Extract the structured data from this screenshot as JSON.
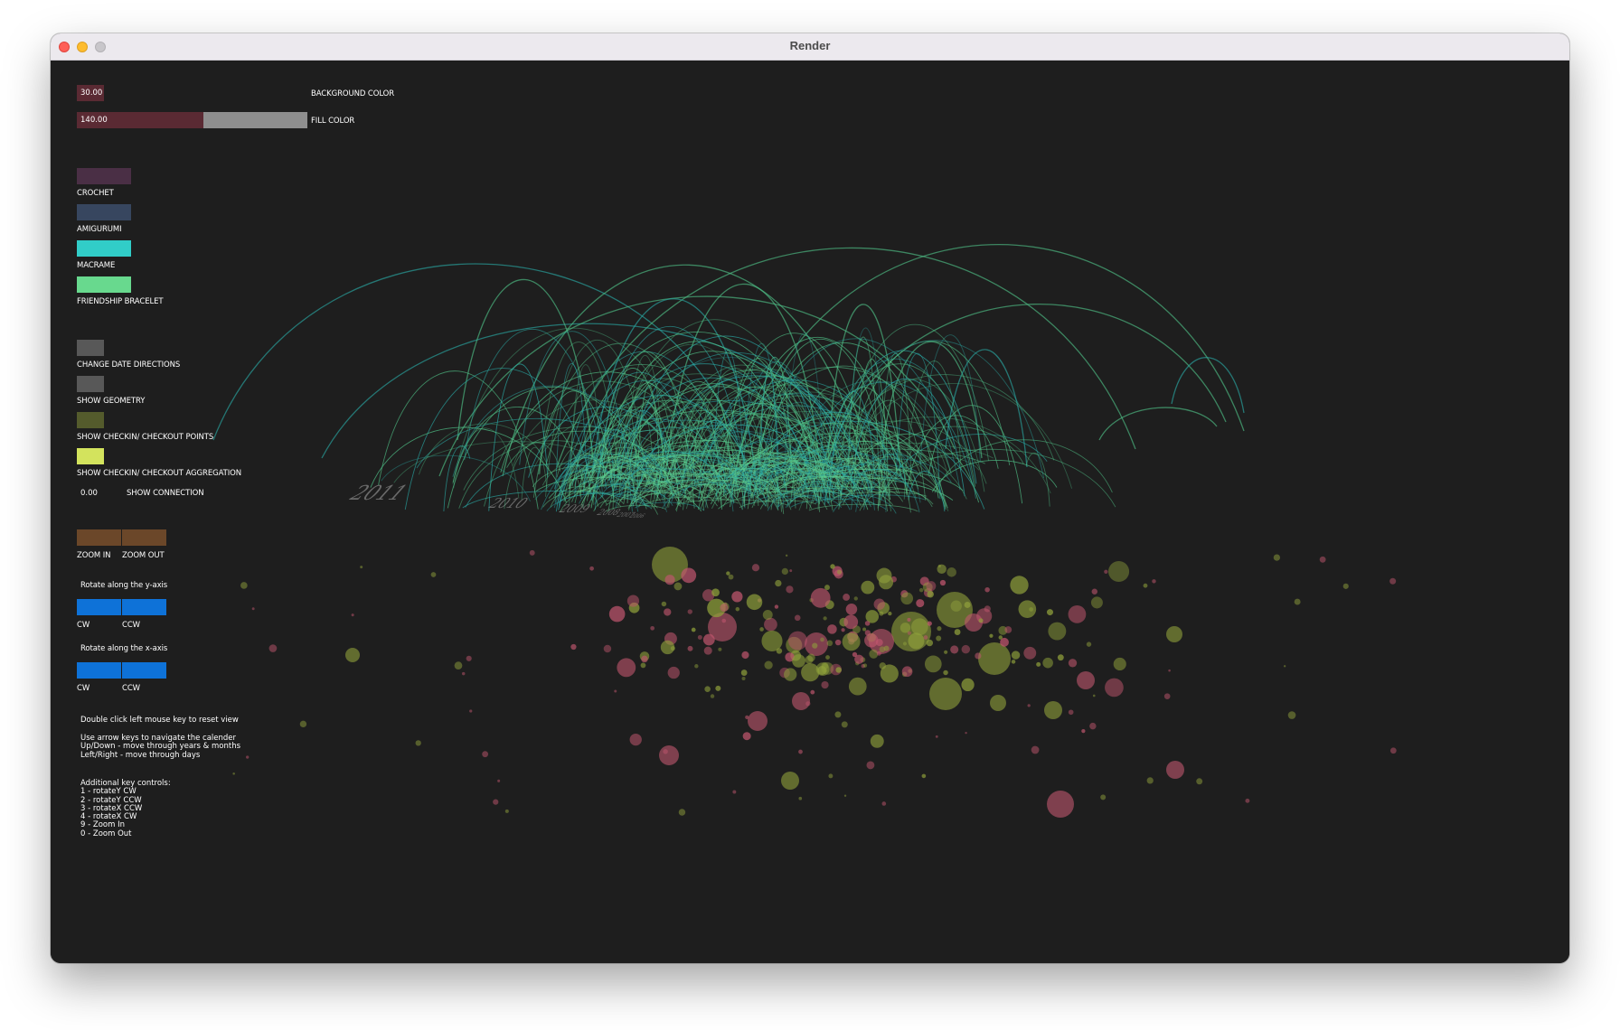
{
  "window": {
    "title": "Render"
  },
  "controls": {
    "background_slider": {
      "value": "30.00",
      "label": "BACKGROUND COLOR",
      "fill": 0.12
    },
    "fill_slider": {
      "value": "140.00",
      "label": "FILL COLOR",
      "fill": 0.55
    },
    "categories": [
      {
        "label": "CROCHET",
        "color": "#4a2f45"
      },
      {
        "label": "AMIGURUMI",
        "color": "#37465f"
      },
      {
        "label": "MACRAME",
        "color": "#31cdc8"
      },
      {
        "label": "FRIENDSHIP BRACELET",
        "color": "#68d98e"
      }
    ],
    "toggles": [
      {
        "label": "CHANGE DATE DIRECTIONS",
        "color": "#585858"
      },
      {
        "label": "SHOW GEOMETRY",
        "color": "#585858"
      },
      {
        "label": "SHOW CHECKIN/ CHECKOUT POINTS",
        "color": "#545b2c"
      },
      {
        "label": "SHOW CHECKIN/ CHECKOUT AGGREGATION",
        "color": "#d3e35d"
      }
    ],
    "connection": {
      "value": "0.00",
      "label": "SHOW CONNECTION"
    },
    "zoom": {
      "in_label": "ZOOM IN",
      "out_label": "ZOOM OUT",
      "color": "#6b4729"
    },
    "rotate_y": {
      "title": "Rotate along the y-axis",
      "cw": "CW",
      "ccw": "CCW",
      "color": "#0e72d8"
    },
    "rotate_x": {
      "title": "Rotate along the x-axis",
      "cw": "CW",
      "ccw": "CCW",
      "color": "#0e72d8"
    }
  },
  "help": {
    "reset": "Double click left mouse key to reset view",
    "nav": "Use arrow keys to navigate the calender\nUp/Down - move through years & months\nLeft/Right - move through days",
    "keys": "Additional key controls:\n1 - rotateY CW\n2 - rotateY CCW\n3 - rotateX CCW\n4 - rotateX CW\n9 - Zoom In\n0 - Zoom Out"
  },
  "year_labels": [
    "2011",
    "2010",
    "2009",
    "2008",
    "2007",
    "2006"
  ],
  "colors": {
    "arc_green": "#4fbf86",
    "arc_teal": "#2aa7a3",
    "bubble_olive": "#8fa03b",
    "bubble_pink": "#c0566e"
  }
}
